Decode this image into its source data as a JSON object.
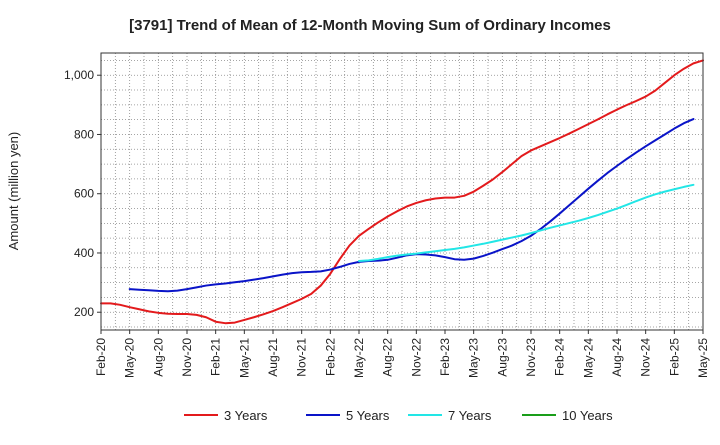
{
  "chart_data": {
    "type": "line",
    "title": "[3791]  Trend of Mean of 12-Month Moving Sum of Ordinary Incomes",
    "xlabel": "",
    "ylabel": "Amount (million yen)",
    "ylim": [
      140,
      1075
    ],
    "yticks": [
      200,
      400,
      600,
      800,
      1000
    ],
    "ytick_labels": [
      "200",
      "400",
      "600",
      "800",
      "1,000"
    ],
    "xticks": [
      "Feb-20",
      "May-20",
      "Aug-20",
      "Nov-20",
      "Feb-21",
      "May-21",
      "Aug-21",
      "Nov-21",
      "Feb-22",
      "May-22",
      "Aug-22",
      "Nov-22",
      "Feb-23",
      "May-23",
      "Aug-23",
      "Nov-23",
      "Feb-24",
      "May-24",
      "Aug-24",
      "Nov-24",
      "Feb-25",
      "May-25"
    ],
    "grid": true,
    "legend_position": "bottom",
    "series": [
      {
        "name": "3 Years",
        "color": "#e31a1c",
        "start_index": 0,
        "values": [
          230,
          230,
          225,
          217,
          210,
          203,
          198,
          195,
          194,
          194,
          191,
          183,
          168,
          163,
          165,
          174,
          183,
          193,
          204,
          217,
          231,
          245,
          262,
          290,
          330,
          380,
          425,
          458,
          481,
          503,
          523,
          541,
          557,
          569,
          578,
          584,
          587,
          587,
          593,
          607,
          627,
          648,
          673,
          700,
          727,
          746,
          760,
          774,
          788,
          803,
          819,
          835,
          851,
          868,
          884,
          899,
          913,
          928,
          948,
          974,
          1000,
          1022,
          1040,
          1050
        ]
      },
      {
        "name": "5 Years",
        "color": "#0a14c8",
        "start_index": 3,
        "values": [
          278,
          276,
          274,
          272,
          271,
          273,
          278,
          284,
          290,
          294,
          297,
          301,
          305,
          310,
          315,
          321,
          327,
          332,
          335,
          336,
          338,
          344,
          353,
          363,
          370,
          373,
          374,
          377,
          384,
          392,
          396,
          395,
          392,
          386,
          379,
          377,
          381,
          390,
          401,
          413,
          425,
          440,
          458,
          481,
          506,
          533,
          561,
          589,
          617,
          644,
          670,
          694,
          717,
          739,
          760,
          780,
          800,
          820,
          838,
          852
        ]
      },
      {
        "name": "7 Years",
        "color": "#22e6e6",
        "start_index": 27,
        "values": [
          373,
          375,
          380,
          386,
          391,
          395,
          398,
          402,
          406,
          410,
          414,
          419,
          425,
          431,
          438,
          445,
          452,
          459,
          467,
          476,
          485,
          493,
          501,
          509,
          518,
          528,
          539,
          550,
          562,
          575,
          587,
          598,
          607,
          615,
          623,
          630
        ]
      },
      {
        "name": "10 Years",
        "color": "#1a9e1a",
        "start_index": 0,
        "values": []
      }
    ]
  }
}
